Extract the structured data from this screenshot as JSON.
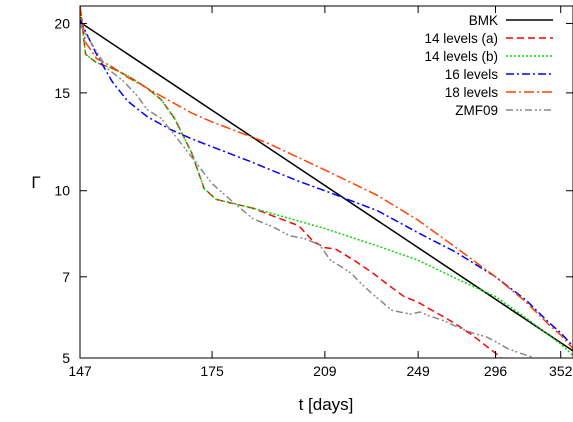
{
  "chart_data": {
    "type": "line",
    "xlabel": "t [days]",
    "ylabel": "Γ",
    "x_scale": "reciprocal",
    "y_scale": "log",
    "xlim": [
      147,
      365
    ],
    "ylim": [
      5,
      21.5
    ],
    "x_ticks": [
      147,
      175,
      209,
      249,
      296,
      352
    ],
    "y_ticks": [
      5,
      7,
      10,
      15,
      20
    ],
    "grid": false,
    "legend_position": "top-right",
    "series": [
      {
        "name": "BMK",
        "color": "#000000",
        "dash": "solid",
        "points": [
          [
            147,
            20.1
          ],
          [
            365,
            5.15
          ]
        ]
      },
      {
        "name": "14 levels (a)",
        "color": "#ff0000",
        "dash": "dashed",
        "points": [
          [
            147,
            21.5
          ],
          [
            148,
            17.6
          ],
          [
            150,
            17.0
          ],
          [
            153,
            16.6
          ],
          [
            156,
            16.1
          ],
          [
            160,
            15.3
          ],
          [
            163,
            14.6
          ],
          [
            166,
            13.5
          ],
          [
            170,
            11.7
          ],
          [
            173,
            10.1
          ],
          [
            176,
            9.65
          ],
          [
            180,
            9.5
          ],
          [
            186,
            9.3
          ],
          [
            192,
            9.0
          ],
          [
            200,
            8.65
          ],
          [
            205,
            8.1
          ],
          [
            209,
            7.9
          ],
          [
            213,
            7.85
          ],
          [
            220,
            7.5
          ],
          [
            228,
            7.1
          ],
          [
            235,
            6.75
          ],
          [
            242,
            6.45
          ],
          [
            249,
            6.3
          ],
          [
            256,
            6.1
          ],
          [
            264,
            5.9
          ],
          [
            270,
            5.75
          ],
          [
            280,
            5.5
          ],
          [
            296,
            5.1
          ],
          [
            300,
            5.0
          ]
        ]
      },
      {
        "name": "14 levels (b)",
        "color": "#00dd00",
        "dash": "dotted",
        "points": [
          [
            147,
            21.5
          ],
          [
            148,
            17.6
          ],
          [
            150,
            17.0
          ],
          [
            153,
            16.6
          ],
          [
            156,
            16.1
          ],
          [
            160,
            15.3
          ],
          [
            163,
            14.6
          ],
          [
            166,
            13.5
          ],
          [
            170,
            11.7
          ],
          [
            173,
            10.1
          ],
          [
            176,
            9.65
          ],
          [
            180,
            9.5
          ],
          [
            186,
            9.3
          ],
          [
            193,
            9.05
          ],
          [
            209,
            8.55
          ],
          [
            230,
            7.95
          ],
          [
            249,
            7.5
          ],
          [
            270,
            6.95
          ],
          [
            296,
            6.45
          ],
          [
            320,
            5.9
          ],
          [
            340,
            5.5
          ],
          [
            352,
            5.3
          ],
          [
            365,
            5.05
          ]
        ]
      },
      {
        "name": "16 levels",
        "color": "#0000ff",
        "dash": "dashdot",
        "points": [
          [
            147,
            20.3
          ],
          [
            150,
            17.6
          ],
          [
            153,
            15.7
          ],
          [
            156,
            14.5
          ],
          [
            160,
            13.6
          ],
          [
            165,
            12.9
          ],
          [
            170,
            12.4
          ],
          [
            175,
            12.0
          ],
          [
            185,
            11.3
          ],
          [
            200,
            10.4
          ],
          [
            209,
            10.0
          ],
          [
            230,
            9.2
          ],
          [
            249,
            8.4
          ],
          [
            270,
            7.75
          ],
          [
            296,
            7.0
          ],
          [
            320,
            6.35
          ],
          [
            340,
            5.8
          ],
          [
            352,
            5.55
          ],
          [
            365,
            5.25
          ]
        ]
      },
      {
        "name": "18 levels",
        "color": "#ff4400",
        "dash": "longdashdot",
        "points": [
          [
            147,
            21.5
          ],
          [
            148,
            18.5
          ],
          [
            150,
            17.3
          ],
          [
            153,
            16.7
          ],
          [
            156,
            16.0
          ],
          [
            160,
            15.3
          ],
          [
            165,
            14.5
          ],
          [
            170,
            13.8
          ],
          [
            175,
            13.3
          ],
          [
            190,
            12.2
          ],
          [
            209,
            10.9
          ],
          [
            230,
            9.8
          ],
          [
            249,
            8.85
          ],
          [
            270,
            7.9
          ],
          [
            296,
            7.0
          ],
          [
            320,
            6.3
          ],
          [
            340,
            5.75
          ],
          [
            352,
            5.5
          ],
          [
            365,
            5.2
          ]
        ]
      },
      {
        "name": "ZMF09",
        "color": "#888888",
        "dash": "dashdotdot",
        "points": [
          [
            147,
            19.9
          ],
          [
            150,
            17.8
          ],
          [
            152,
            16.6
          ],
          [
            155,
            15.8
          ],
          [
            158,
            14.8
          ],
          [
            160,
            14.0
          ],
          [
            163,
            13.5
          ],
          [
            166,
            12.6
          ],
          [
            170,
            11.5
          ],
          [
            175,
            10.3
          ],
          [
            180,
            9.6
          ],
          [
            186,
            8.9
          ],
          [
            192,
            8.6
          ],
          [
            197,
            8.3
          ],
          [
            202,
            8.2
          ],
          [
            207,
            8.0
          ],
          [
            211,
            7.5
          ],
          [
            215,
            7.3
          ],
          [
            219,
            7.1
          ],
          [
            223,
            6.8
          ],
          [
            228,
            6.5
          ],
          [
            232,
            6.3
          ],
          [
            236,
            6.1
          ],
          [
            240,
            6.05
          ],
          [
            245,
            6.0
          ],
          [
            250,
            6.05
          ],
          [
            255,
            5.95
          ],
          [
            262,
            5.85
          ],
          [
            270,
            5.7
          ],
          [
            280,
            5.55
          ],
          [
            290,
            5.45
          ],
          [
            296,
            5.35
          ],
          [
            305,
            5.2
          ],
          [
            315,
            5.1
          ],
          [
            325,
            5.02
          ]
        ]
      }
    ]
  }
}
